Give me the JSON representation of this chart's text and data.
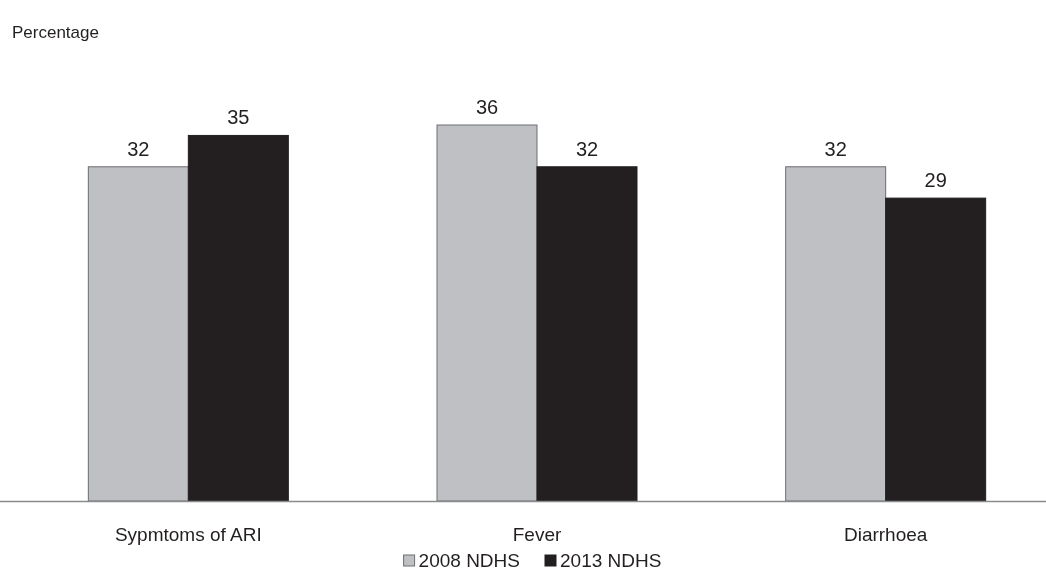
{
  "chart_data": {
    "type": "bar",
    "ylabel": "Percentage",
    "categories": [
      "Sypmtoms of ARI",
      "Fever",
      "Diarrhoea"
    ],
    "series": [
      {
        "name": "2008 NDHS",
        "color": "#bfc0c4",
        "values": [
          32,
          36,
          32
        ]
      },
      {
        "name": "2013 NDHS",
        "color": "#231f20",
        "values": [
          35,
          32,
          29
        ]
      }
    ],
    "data_labels": true,
    "legend": "bottom"
  }
}
